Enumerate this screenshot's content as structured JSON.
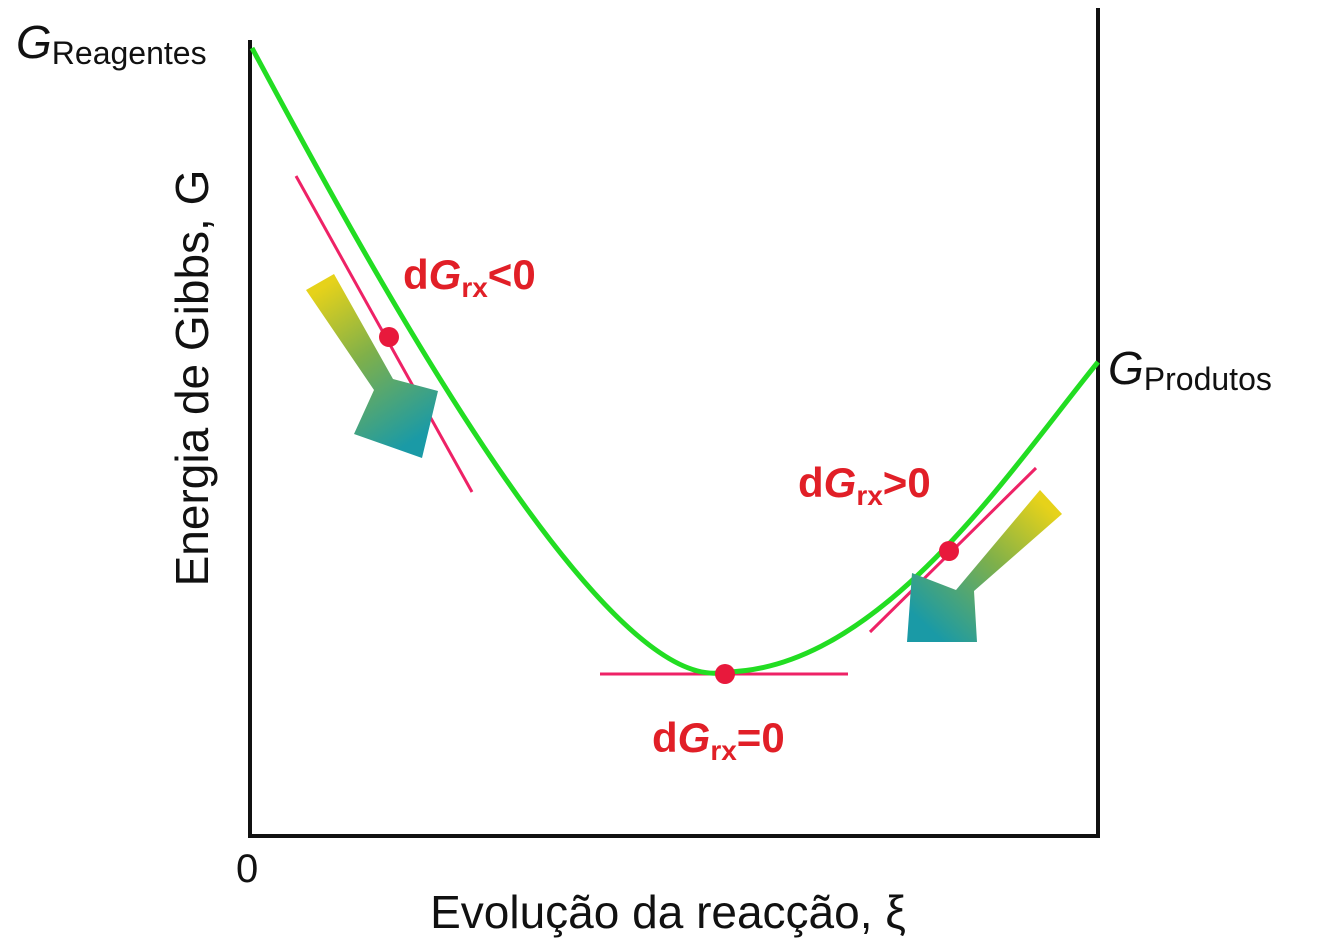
{
  "axes": {
    "x_origin": "0",
    "x_title": "Evolução da reacção, ξ",
    "y_title": "Energia de Gibbs, G"
  },
  "labels": {
    "g_reagentes": {
      "main": "G",
      "sub": "Reagentes"
    },
    "g_produtos": {
      "main": "G",
      "sub": "Produtos"
    },
    "dg_negative": {
      "d": "d",
      "main": "G",
      "sub": "rx",
      "rel": "<0"
    },
    "dg_zero": {
      "d": "d",
      "main": "G",
      "sub": "rx",
      "rel": "=0"
    },
    "dg_positive": {
      "d": "d",
      "main": "G",
      "sub": "rx",
      "rel": ">0"
    }
  },
  "colors": {
    "curve": "#22dd22",
    "tangent": "#ee2266",
    "point": "#e8193c",
    "label": "#e11f27",
    "arrow_start": "#e6d21a",
    "arrow_end": "#1a9aa6"
  }
}
